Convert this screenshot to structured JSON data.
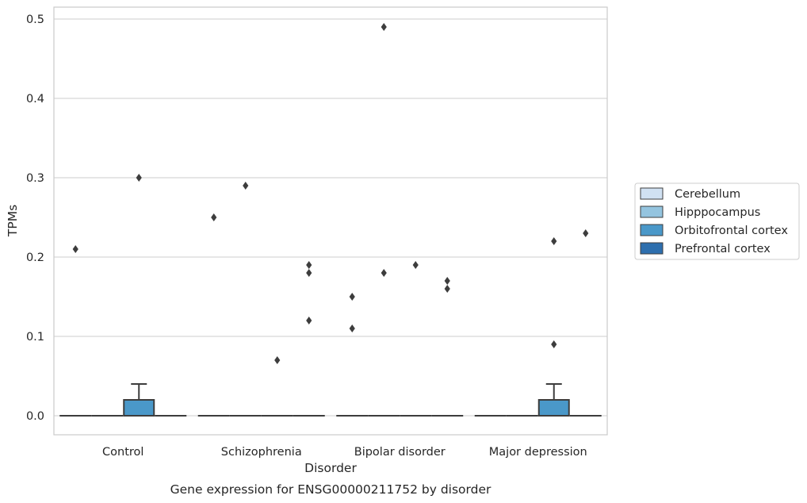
{
  "chart_data": {
    "type": "box",
    "title": "",
    "caption": "Gene expression for ENSG00000211752 by disorder",
    "xlabel": "Disorder",
    "ylabel": "TPMs",
    "ylim": [
      -0.024,
      0.515
    ],
    "yticks": [
      "0.0",
      "0.1",
      "0.2",
      "0.3",
      "0.4",
      "0.5"
    ],
    "grid": true,
    "legend_position": "right",
    "categories": [
      "Control",
      "Schizophrenia",
      "Bipolar disorder",
      "Major depression"
    ],
    "series": [
      {
        "name": "Cerebellum",
        "color": "#d0e1f2",
        "boxes": [
          {
            "q1": 0,
            "median": 0,
            "q3": 0,
            "whisker_low": 0,
            "whisker_high": 0,
            "outliers": [
              0.21
            ]
          },
          {
            "q1": 0,
            "median": 0,
            "q3": 0,
            "whisker_low": 0,
            "whisker_high": 0,
            "outliers": [
              0.25
            ]
          },
          {
            "q1": 0,
            "median": 0,
            "q3": 0,
            "whisker_low": 0,
            "whisker_high": 0,
            "outliers": [
              0.11,
              0.15
            ]
          },
          {
            "q1": 0,
            "median": 0,
            "q3": 0,
            "whisker_low": 0,
            "whisker_high": 0,
            "outliers": []
          }
        ]
      },
      {
        "name": "Hipppocampus",
        "color": "#94c4df",
        "boxes": [
          {
            "q1": 0,
            "median": 0,
            "q3": 0,
            "whisker_low": 0,
            "whisker_high": 0,
            "outliers": []
          },
          {
            "q1": 0,
            "median": 0,
            "q3": 0,
            "whisker_low": 0,
            "whisker_high": 0,
            "outliers": [
              0.29
            ]
          },
          {
            "q1": 0,
            "median": 0,
            "q3": 0,
            "whisker_low": 0,
            "whisker_high": 0,
            "outliers": [
              0.49,
              0.18
            ]
          },
          {
            "q1": 0,
            "median": 0,
            "q3": 0,
            "whisker_low": 0,
            "whisker_high": 0,
            "outliers": []
          }
        ]
      },
      {
        "name": "Orbitofrontal cortex",
        "color": "#4a98c9",
        "boxes": [
          {
            "q1": 0,
            "median": 0,
            "q3": 0.02,
            "whisker_low": 0,
            "whisker_high": 0.04,
            "outliers": [
              0.3
            ]
          },
          {
            "q1": 0,
            "median": 0,
            "q3": 0,
            "whisker_low": 0,
            "whisker_high": 0,
            "outliers": [
              0.07
            ]
          },
          {
            "q1": 0,
            "median": 0,
            "q3": 0,
            "whisker_low": 0,
            "whisker_high": 0,
            "outliers": [
              0.19
            ]
          },
          {
            "q1": 0,
            "median": 0,
            "q3": 0.02,
            "whisker_low": 0,
            "whisker_high": 0.04,
            "outliers": [
              0.22,
              0.09
            ]
          }
        ]
      },
      {
        "name": "Prefrontal cortex",
        "color": "#2e6fae",
        "boxes": [
          {
            "q1": 0,
            "median": 0,
            "q3": 0,
            "whisker_low": 0,
            "whisker_high": 0,
            "outliers": []
          },
          {
            "q1": 0,
            "median": 0,
            "q3": 0,
            "whisker_low": 0,
            "whisker_high": 0,
            "outliers": [
              0.19,
              0.18,
              0.12
            ]
          },
          {
            "q1": 0,
            "median": 0,
            "q3": 0,
            "whisker_low": 0,
            "whisker_high": 0,
            "outliers": [
              0.17,
              0.16
            ]
          },
          {
            "q1": 0,
            "median": 0,
            "q3": 0,
            "whisker_low": 0,
            "whisker_high": 0,
            "outliers": [
              0.23
            ]
          }
        ]
      }
    ]
  }
}
